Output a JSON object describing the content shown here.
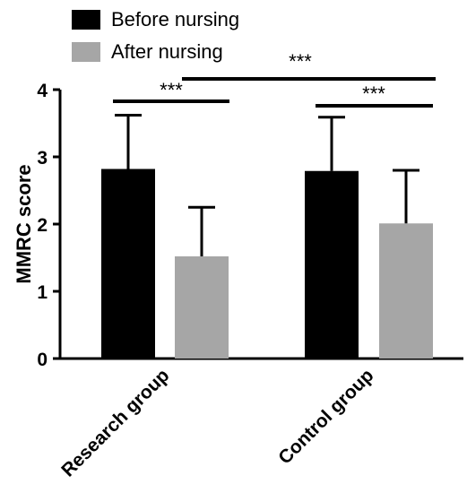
{
  "chart_data": {
    "type": "bar",
    "categories": [
      "Research group",
      "Control group"
    ],
    "series": [
      {
        "name": "Before nursing",
        "values": [
          2.82,
          2.79
        ],
        "errors": [
          0.8,
          0.8
        ],
        "color": "#000000"
      },
      {
        "name": "After nursing",
        "values": [
          1.52,
          2.01
        ],
        "errors": [
          0.73,
          0.79
        ],
        "color": "#a6a6a6"
      }
    ],
    "ylabel": "MMRC score",
    "xlabel": "",
    "ylim": [
      0,
      4
    ],
    "yticks": [
      "0",
      "1",
      "2",
      "3",
      "4"
    ],
    "significance": [
      {
        "label": "***",
        "between": "Research group: Before vs After"
      },
      {
        "label": "***",
        "between": "Control group: Before vs After"
      },
      {
        "label": "***",
        "between": "Research group After vs Control group After"
      }
    ],
    "grid": false,
    "legend_position": "top-left"
  }
}
